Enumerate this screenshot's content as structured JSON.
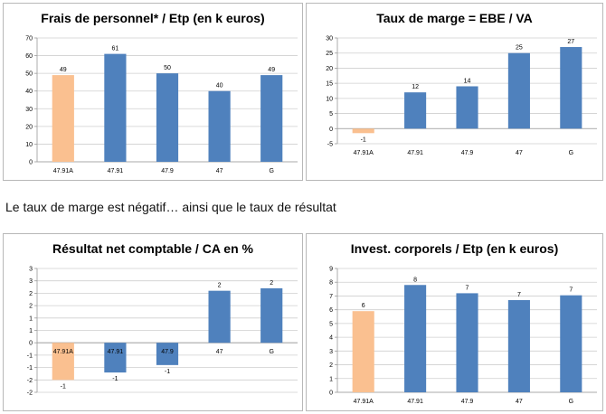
{
  "between_text": "Le taux de marge est négatif… ainsi que le taux de résultat",
  "colors": {
    "highlight": "#FAC090",
    "main": "#4F81BD"
  },
  "chart_data": [
    {
      "type": "bar",
      "title": "Frais de personnel* / Etp (en k euros)",
      "categories": [
        "47.91A",
        "47.91",
        "47.9",
        "47",
        "G"
      ],
      "values": [
        49,
        61,
        50,
        40,
        49
      ],
      "data_labels": [
        "49",
        "61",
        "50",
        "40",
        "49"
      ],
      "ylim": [
        0,
        70
      ],
      "yticks": [
        0,
        10,
        20,
        30,
        40,
        50,
        60,
        70
      ],
      "grid": true,
      "xlabel": "",
      "ylabel": ""
    },
    {
      "type": "bar",
      "title": "Taux de marge = EBE / VA",
      "categories": [
        "47.91A",
        "47.91",
        "47.9",
        "47",
        "G"
      ],
      "values": [
        -1.5,
        12,
        14,
        25,
        27
      ],
      "data_labels": [
        "-1",
        "12",
        "14",
        "25",
        "27"
      ],
      "ylim": [
        -5,
        30
      ],
      "yticks": [
        -5,
        0,
        5,
        10,
        15,
        20,
        25,
        30
      ],
      "grid": true,
      "xlabel": "",
      "ylabel": ""
    },
    {
      "type": "bar",
      "title": "Résultat net comptable / CA en %",
      "categories": [
        "47.91A",
        "47.91",
        "47.9",
        "47",
        "G"
      ],
      "values": [
        -1.5,
        -1.2,
        -0.9,
        2.1,
        2.2
      ],
      "data_labels": [
        "-1",
        "-1",
        "-1",
        "2",
        "2"
      ],
      "ylim": [
        -2,
        3
      ],
      "yticks": [
        -2,
        -1.5,
        -1,
        -0.5,
        0,
        0.5,
        1,
        1.5,
        2,
        2.5,
        3
      ],
      "ytick_labels": [
        "-2",
        "-2",
        "-1",
        "-1",
        "0",
        "1",
        "1",
        "2",
        "2",
        "3",
        "3"
      ],
      "grid": true,
      "xlabel": "",
      "ylabel": ""
    },
    {
      "type": "bar",
      "title": "Invest. corporels / Etp  (en k euros)",
      "categories": [
        "47.91A",
        "47.91",
        "47.9",
        "47",
        "G"
      ],
      "values": [
        5.9,
        7.8,
        7.2,
        6.7,
        7.05
      ],
      "data_labels": [
        "6",
        "8",
        "7",
        "7",
        "7"
      ],
      "ylim": [
        0,
        9
      ],
      "yticks": [
        0,
        1,
        2,
        3,
        4,
        5,
        6,
        7,
        8,
        9
      ],
      "grid": true,
      "xlabel": "",
      "ylabel": ""
    }
  ]
}
